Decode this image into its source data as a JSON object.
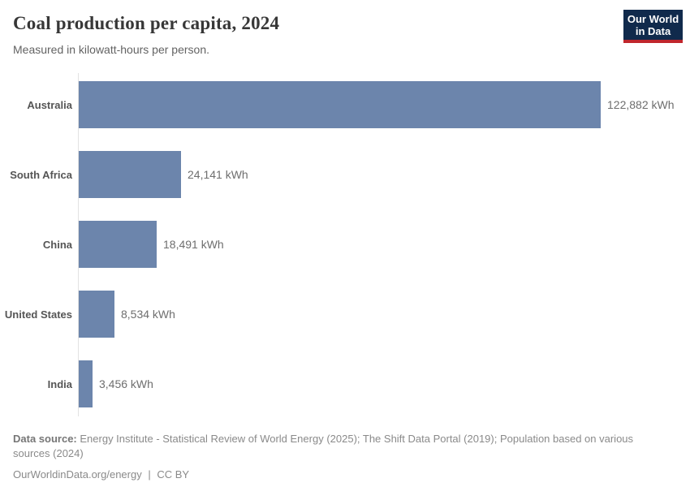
{
  "header": {
    "title": "Coal production per capita, 2024",
    "subtitle": "Measured in kilowatt-hours per person."
  },
  "logo": {
    "line1": "Our World",
    "line2": "in Data"
  },
  "chart_data": {
    "type": "bar",
    "orientation": "horizontal",
    "title": "Coal production per capita, 2024",
    "subtitle": "Measured in kilowatt-hours per person.",
    "unit": "kWh",
    "categories": [
      "Australia",
      "South Africa",
      "China",
      "United States",
      "India"
    ],
    "values": [
      122882,
      24141,
      18491,
      8534,
      3456
    ],
    "value_labels": [
      "122,882 kWh",
      "24,141 kWh",
      "18,491 kWh",
      "8,534 kWh",
      "3,456 kWh"
    ],
    "xlim": [
      0,
      122882
    ],
    "grid": false,
    "legend": "none"
  },
  "colors": {
    "bar": "#6c85ac",
    "axis_line": "#e2e2e2",
    "logo_background": "#102a4c",
    "logo_accent": "#c0262c"
  },
  "footer": {
    "source_label": "Data source:",
    "source_text": "Energy Institute - Statistical Review of World Energy (2025); The Shift Data Portal (2019); Population based on various sources (2024)",
    "link_text": "OurWorldinData.org/energy",
    "separator": "|",
    "license": "CC BY"
  }
}
